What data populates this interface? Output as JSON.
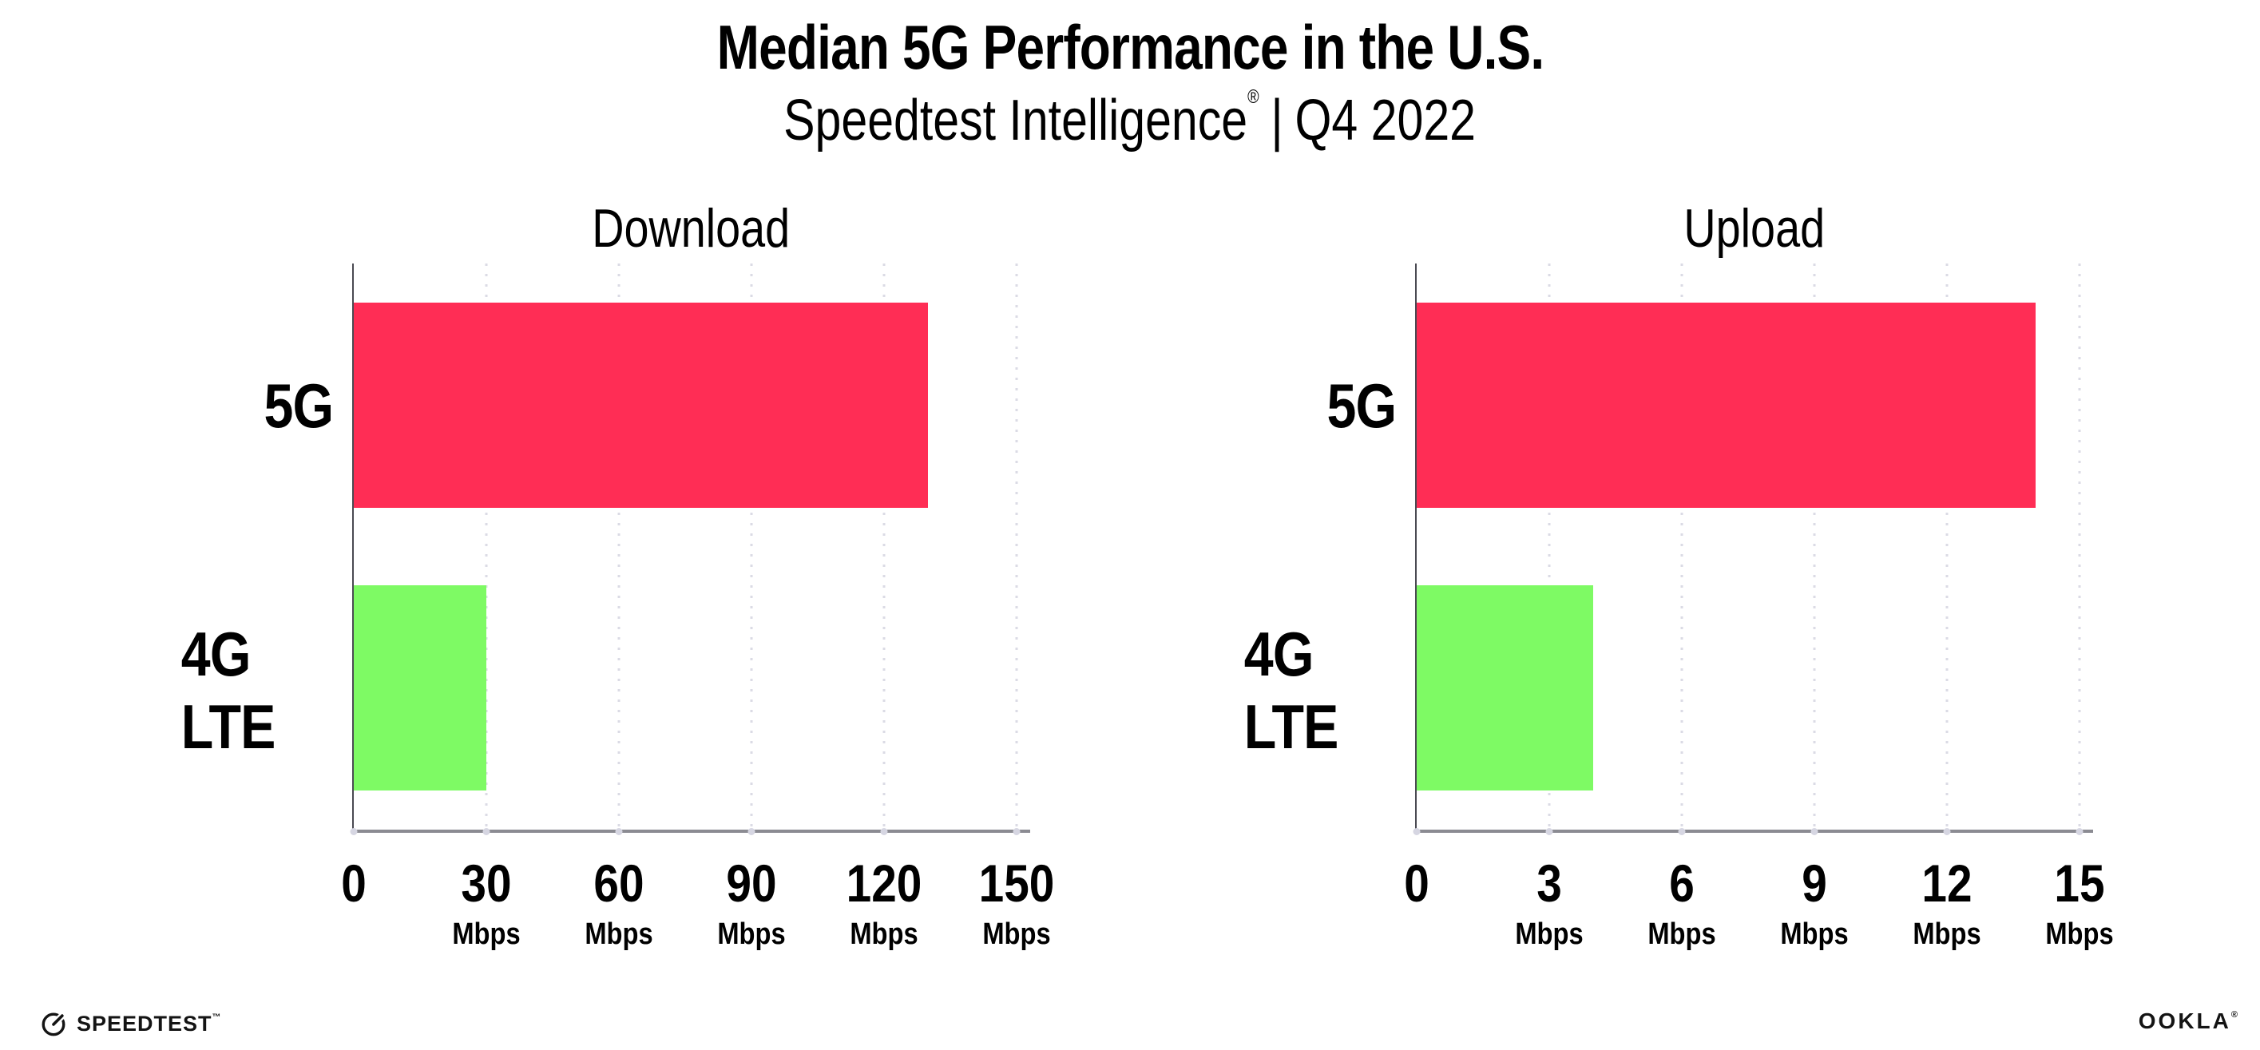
{
  "chart_data": {
    "type": "bar",
    "orientation": "horizontal",
    "title": "Median 5G Performance in the U.S.",
    "subtitle_brand": "Speedtest Intelligence",
    "subtitle_reg": "®",
    "subtitle_sep": "|",
    "subtitle_period": "Q4 2022",
    "categories": [
      "5G",
      "4G LTE"
    ],
    "bar_colors": [
      "#FF2D55",
      "#7EFA64"
    ],
    "grid": "vertical dotted gridlines at each tick",
    "legend": "none",
    "charts": [
      {
        "title": "Download",
        "unit": "Mbps",
        "values": [
          130,
          30
        ],
        "xlim": [
          0,
          150
        ],
        "ticks": [
          0,
          30,
          60,
          90,
          120,
          150
        ]
      },
      {
        "title": "Upload",
        "unit": "Mbps",
        "values": [
          14,
          4
        ],
        "xlim": [
          0,
          15
        ],
        "ticks": [
          0,
          3,
          6,
          9,
          12,
          15
        ]
      }
    ]
  },
  "footer": {
    "speedtest_label": "SPEEDTEST",
    "speedtest_tm": "™",
    "ookla_label": "OOKLA",
    "ookla_reg": "®"
  },
  "colors": {
    "bar_5g": "#FF2D55",
    "bar_4g_lte": "#7EFA64",
    "left_axis": "#4a4a52",
    "bottom_axis": "#8b8b92",
    "gridline_dot": "#dbdbe5",
    "axis_tick_dot": "#d6d6e2",
    "background": "#FFFFFF",
    "text": "#000000"
  }
}
